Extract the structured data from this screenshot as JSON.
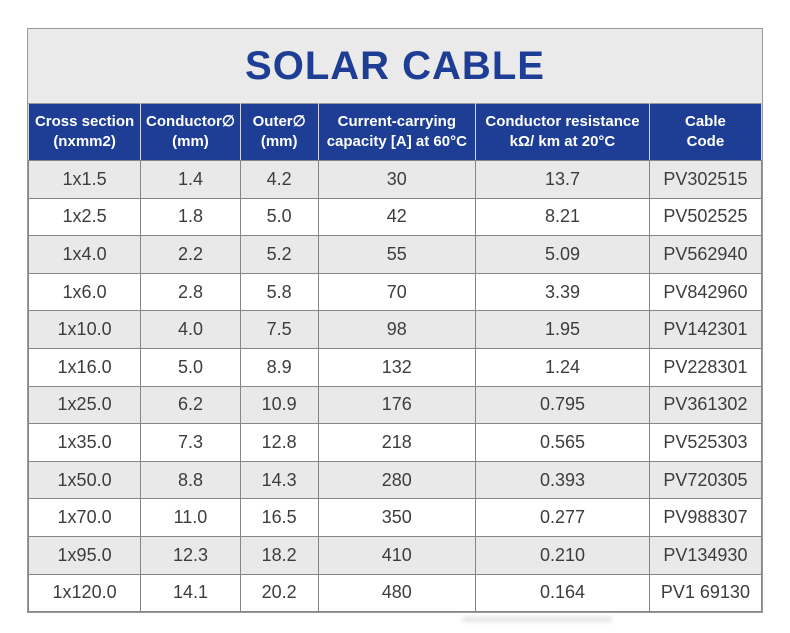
{
  "title": "SOLAR CABLE",
  "colors": {
    "header_bg": "#1e3d94",
    "title_text": "#1e3d94",
    "title_band_bg": "#eaeaea",
    "row_alt_bg": "#e9e9e9",
    "row_bg": "#ffffff",
    "grid_border": "#868686",
    "cell_text": "#3d3d3d",
    "header_text": "#ffffff"
  },
  "table": {
    "headers": [
      {
        "line1": "Cross section",
        "line2": "(nxmm2)"
      },
      {
        "line1": "Conductor∅",
        "line2": "(mm)"
      },
      {
        "line1": "Outer∅",
        "line2": "(mm)"
      },
      {
        "line1": "Current-carrying",
        "line2": "capacity [A] at 60°C"
      },
      {
        "line1": "Conductor resistance",
        "line2": "kΩ/ km at 20°C"
      },
      {
        "line1": "Cable",
        "line2": "Code"
      }
    ],
    "rows": [
      [
        "1x1.5",
        "1.4",
        "4.2",
        "30",
        "13.7",
        "PV302515"
      ],
      [
        "1x2.5",
        "1.8",
        "5.0",
        "42",
        "8.21",
        "PV502525"
      ],
      [
        "1x4.0",
        "2.2",
        "5.2",
        "55",
        "5.09",
        "PV562940"
      ],
      [
        "1x6.0",
        "2.8",
        "5.8",
        "70",
        "3.39",
        "PV842960"
      ],
      [
        "1x10.0",
        "4.0",
        "7.5",
        "98",
        "1.95",
        "PV142301"
      ],
      [
        "1x16.0",
        "5.0",
        "8.9",
        "132",
        "1.24",
        "PV228301"
      ],
      [
        "1x25.0",
        "6.2",
        "10.9",
        "176",
        "0.795",
        "PV361302"
      ],
      [
        "1x35.0",
        "7.3",
        "12.8",
        "218",
        "0.565",
        "PV525303"
      ],
      [
        "1x50.0",
        "8.8",
        "14.3",
        "280",
        "0.393",
        "PV720305"
      ],
      [
        "1x70.0",
        "11.0",
        "16.5",
        "350",
        "0.277",
        "PV988307"
      ],
      [
        "1x95.0",
        "12.3",
        "18.2",
        "410",
        "0.210",
        "PV134930"
      ],
      [
        "1x120.0",
        "14.1",
        "20.2",
        "480",
        "0.164",
        "PV1 69130"
      ]
    ]
  }
}
